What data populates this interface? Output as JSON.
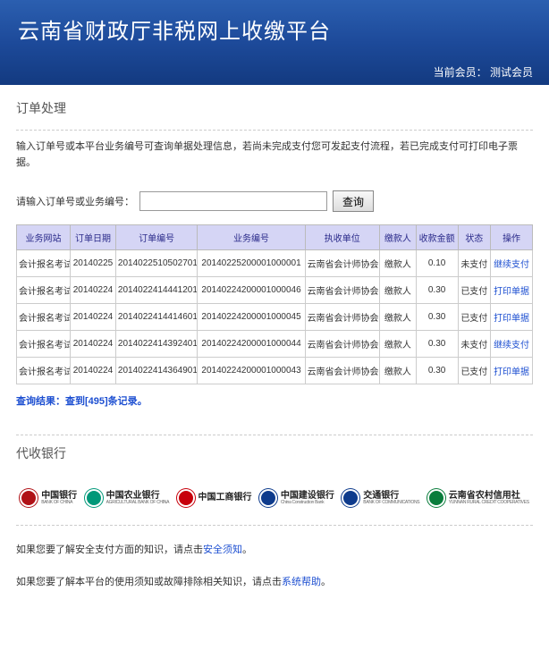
{
  "header": {
    "title": "云南省财政厅非税网上收缴平台",
    "member_label": "当前会员：",
    "member_name": "测试会员"
  },
  "section": {
    "title": "订单处理",
    "help": "输入订单号或本平台业务编号可查询单据处理信息，若尚未完成支付您可发起支付流程，若已完成支付可打印电子票据。"
  },
  "search": {
    "label": "请输入订单号或业务编号：",
    "value": "",
    "button": "查询"
  },
  "table": {
    "headers": [
      "业务网站",
      "订单日期",
      "订单编号",
      "业务编号",
      "执收单位",
      "缴款人",
      "收款金额",
      "状态",
      "操作"
    ],
    "col_widths": [
      "59",
      "50",
      "90",
      "118",
      "82",
      "40",
      "46",
      "36",
      "46"
    ],
    "rows": [
      {
        "site": "会计报名考试",
        "date": "20140225",
        "order": "201402251050270​1",
        "biz": "201402252000010000​01",
        "unit": "云南省会计师协会",
        "payer": "缴款人",
        "amount": "0.10",
        "status": "未支付",
        "action": "继续支付"
      },
      {
        "site": "会计报名考试",
        "date": "20140224",
        "order": "201402241444120​1",
        "biz": "201402242000010000​46",
        "unit": "云南省会计师协会",
        "payer": "缴款人",
        "amount": "0.30",
        "status": "已支付",
        "action": "打印单据"
      },
      {
        "site": "会计报名考试",
        "date": "20140224",
        "order": "201402241441460​1",
        "biz": "201402242000010000​45",
        "unit": "云南省会计师协会",
        "payer": "缴款人",
        "amount": "0.30",
        "status": "已支付",
        "action": "打印单据"
      },
      {
        "site": "会计报名考试",
        "date": "20140224",
        "order": "201402241439240​1",
        "biz": "201402242000010000​44",
        "unit": "云南省会计师协会",
        "payer": "缴款人",
        "amount": "0.30",
        "status": "未支付",
        "action": "继续支付"
      },
      {
        "site": "会计报名考试",
        "date": "20140224",
        "order": "201402241436490​1",
        "biz": "201402242000010000​43",
        "unit": "云南省会计师协会",
        "payer": "缴款人",
        "amount": "0.30",
        "status": "已支付",
        "action": "打印单据"
      }
    ]
  },
  "result": {
    "prefix": "查询结果：",
    "text": "查到[495]条记录。"
  },
  "banks": {
    "title": "代收银行",
    "list": [
      {
        "cn": "中国银行",
        "en": "BANK OF CHINA",
        "color": "#b01116"
      },
      {
        "cn": "中国农业银行",
        "en": "AGRICULTURAL BANK OF CHINA",
        "color": "#009879"
      },
      {
        "cn": "中国工商银行",
        "en": "",
        "color": "#c7000b"
      },
      {
        "cn": "中国建设银行",
        "en": "China Construction Bank",
        "color": "#0e3b8c"
      },
      {
        "cn": "交通银行",
        "en": "BANK OF COMMUNICATIONS",
        "color": "#0e3b8c"
      },
      {
        "cn": "云南省农村信用社",
        "en": "YUNNAN RURAL CREDIT COOPERATIVES",
        "color": "#0a7d3c"
      }
    ]
  },
  "footer": {
    "line1_a": "如果您要了解安全支付方面的知识，请点击",
    "line1_link": "安全须知",
    "line1_b": "。",
    "line2_a": "如果您要了解本平台的使用须知或故障排除相关知识，请点击",
    "line2_link": "系统帮助",
    "line2_b": "。"
  }
}
